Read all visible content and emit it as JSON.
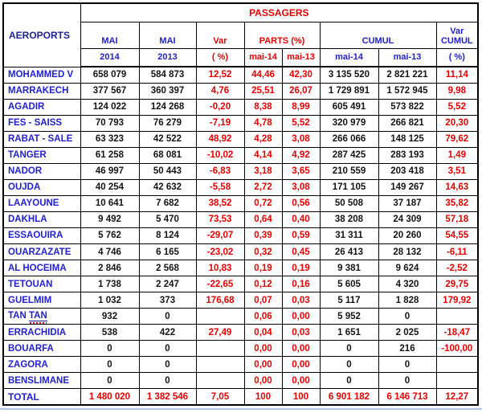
{
  "colors": {
    "header_navy": "#1f1f96",
    "label_blue": "#2222c8",
    "value_blue": "#2121d2",
    "accent_red": "#e80000",
    "value_black": "#141414",
    "grid_black": "#000000",
    "bottom_line_blue": "#b7c3e6"
  },
  "chart_data": {
    "type": "table",
    "title": "PASSAGERS",
    "corner_label": "AEROPORTS",
    "headers": {
      "mai_a": {
        "label": "MAI",
        "year": "2014"
      },
      "mai_b": {
        "label": "MAI",
        "year": "2013"
      },
      "var": {
        "label": "Var",
        "unit": "( %)"
      },
      "parts": {
        "label": "PARTS (%)",
        "sub1": "mai-14",
        "sub2": "mai-13"
      },
      "cumul": {
        "label": "CUMUL",
        "sub1": "mai-14",
        "sub2": "mai-13"
      },
      "var_cumul": {
        "line1": "Var",
        "line2": "CUMUL",
        "unit": "( %)"
      }
    },
    "column_keys": [
      "mai-2014",
      "mai-2013",
      "var-pct",
      "parts-mai-14",
      "parts-mai-13",
      "cumul-mai-14",
      "cumul-mai-13",
      "var-cumul-pct"
    ],
    "rows": [
      {
        "name": "MOHAMMED V",
        "values": [
          "658 079",
          "584 873",
          "12,52",
          "44,46",
          "42,30",
          "3 135 520",
          "2 821 221",
          "11,14"
        ]
      },
      {
        "name": "MARRAKECH",
        "values": [
          "377 567",
          "360 397",
          "4,76",
          "25,51",
          "26,07",
          "1 729 891",
          "1 572 945",
          "9,98"
        ]
      },
      {
        "name": "AGADIR",
        "values": [
          "124 022",
          "124 268",
          "-0,20",
          "8,38",
          "8,99",
          "605 491",
          "573 822",
          "5,52"
        ]
      },
      {
        "name": "FES - SAISS",
        "values": [
          "70 793",
          "76 279",
          "-7,19",
          "4,78",
          "5,52",
          "320 979",
          "266 821",
          "20,30"
        ]
      },
      {
        "name": "RABAT - SALE",
        "values": [
          "63 323",
          "42 522",
          "48,92",
          "4,28",
          "3,08",
          "266 066",
          "148 125",
          "79,62"
        ]
      },
      {
        "name": "TANGER",
        "values": [
          "61 258",
          "68 081",
          "-10,02",
          "4,14",
          "4,92",
          "287 425",
          "283 193",
          "1,49"
        ]
      },
      {
        "name": "NADOR",
        "values": [
          "46 997",
          "50 443",
          "-6,83",
          "3,18",
          "3,65",
          "210 559",
          "203 418",
          "3,51"
        ]
      },
      {
        "name": "OUJDA",
        "values": [
          "40 254",
          "42 632",
          "-5,58",
          "2,72",
          "3,08",
          "171 105",
          "149 267",
          "14,63"
        ]
      },
      {
        "name": "LAAYOUNE",
        "values": [
          "10 641",
          "7 682",
          "38,52",
          "0,72",
          "0,56",
          "50 508",
          "37 187",
          "35,82"
        ]
      },
      {
        "name": "DAKHLA",
        "values": [
          "9 492",
          "5 470",
          "73,53",
          "0,64",
          "0,40",
          "38 208",
          "24 309",
          "57,18"
        ]
      },
      {
        "name": "ESSAOUIRA",
        "values": [
          "5 762",
          "8 124",
          "-29,07",
          "0,39",
          "0,59",
          "31 311",
          "20 260",
          "54,55"
        ]
      },
      {
        "name": "OUARZAZATE",
        "values": [
          "4 746",
          "6 165",
          "-23,02",
          "0,32",
          "0,45",
          "26 413",
          "28 132",
          "-6,11"
        ]
      },
      {
        "name": "AL HOCEIMA",
        "values": [
          "2 846",
          "2 568",
          "10,83",
          "0,19",
          "0,19",
          "9 381",
          "9 624",
          "-2,52"
        ]
      },
      {
        "name": "TETOUAN",
        "values": [
          "1 738",
          "2 247",
          "-22,65",
          "0,12",
          "0,16",
          "5 605",
          "4 320",
          "29,75"
        ]
      },
      {
        "name": "GUELMIM",
        "values": [
          "1 032",
          "373",
          "176,68",
          "0,07",
          "0,03",
          "5 117",
          "1 828",
          "179,92"
        ]
      },
      {
        "name": "TAN TAN",
        "misspelled": true,
        "values": [
          "932",
          "0",
          "",
          "0,06",
          "0,00",
          "5 952",
          "0",
          ""
        ]
      },
      {
        "name": "ERRACHIDIA",
        "values": [
          "538",
          "422",
          "27,49",
          "0,04",
          "0,03",
          "1 651",
          "2 025",
          "-18,47"
        ]
      },
      {
        "name": "BOUARFA",
        "values": [
          "0",
          "0",
          "",
          "0,00",
          "0,00",
          "0",
          "216",
          "-100,00"
        ]
      },
      {
        "name": "ZAGORA",
        "values": [
          "0",
          "0",
          "",
          "0,00",
          "0,00",
          "0",
          "0",
          ""
        ]
      },
      {
        "name": "BENSLIMANE",
        "values": [
          "0",
          "0",
          "",
          "0,00",
          "0,00",
          "0",
          "0",
          ""
        ]
      }
    ],
    "total_row": {
      "name": "TOTAL",
      "values": [
        "1 480 020",
        "1 382 546",
        "7,05",
        "100",
        "100",
        "6 901 182",
        "6 146 713",
        "12,27"
      ]
    }
  }
}
